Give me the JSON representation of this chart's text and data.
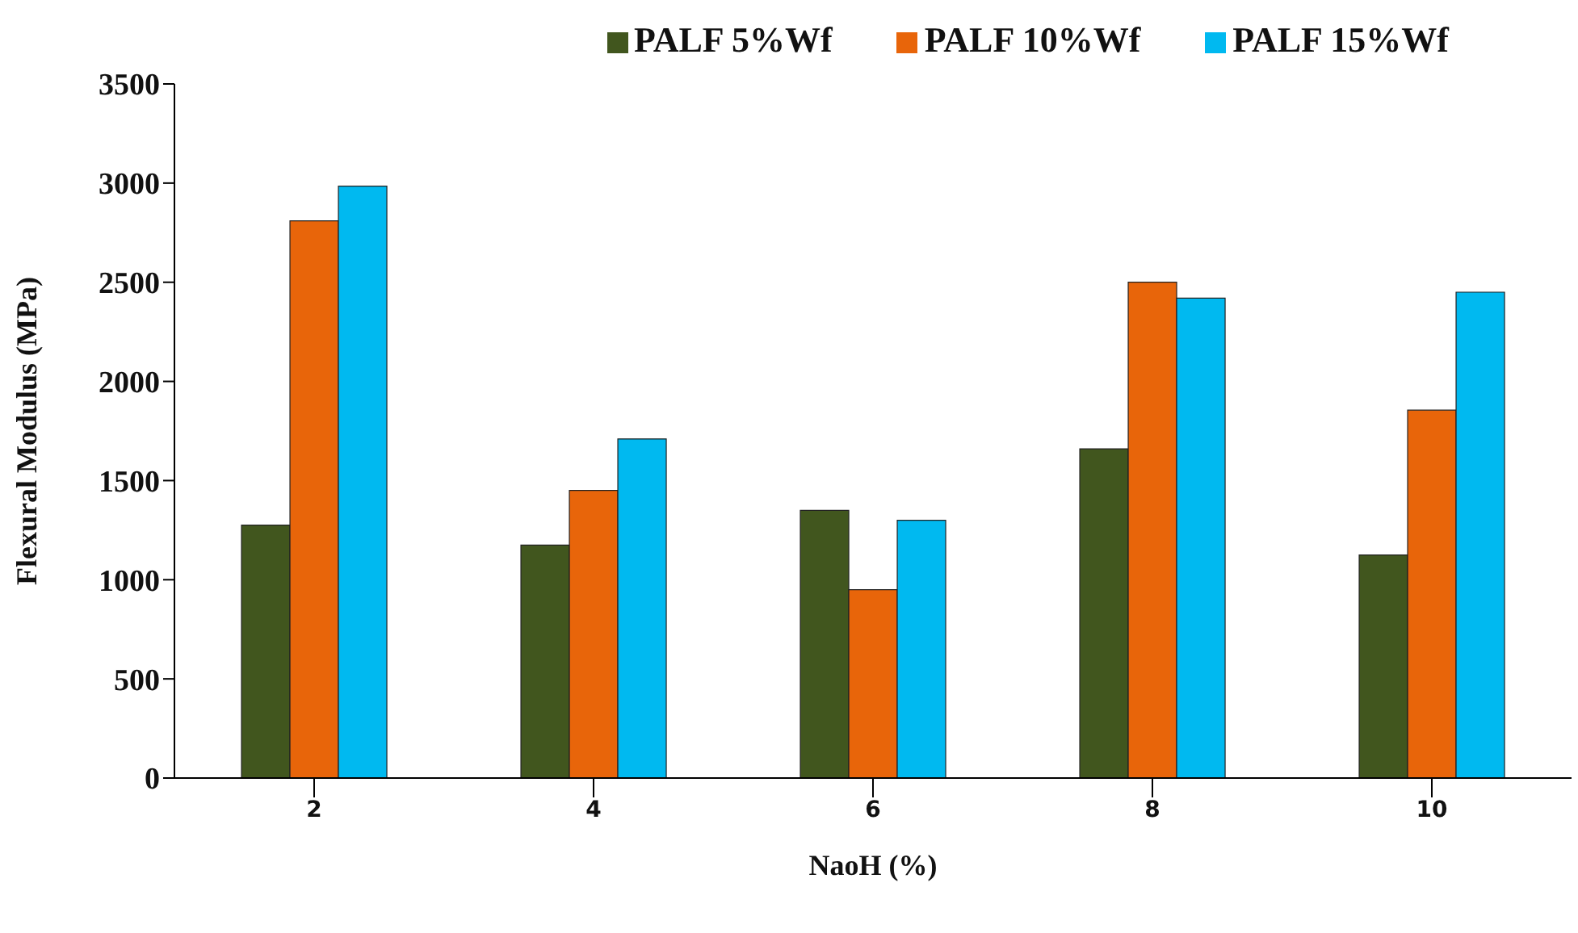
{
  "chart_data": {
    "type": "bar",
    "xlabel": "NaoH  (%)",
    "ylabel": "Flexural  Modulus   (MPa)",
    "categories": [
      "2",
      "4",
      "6",
      "8",
      "10"
    ],
    "series": [
      {
        "name": "PALF  5%Wf",
        "color": "#41561e",
        "values": [
          1275,
          1175,
          1350,
          1660,
          1125
        ]
      },
      {
        "name": "PALF 10%Wf",
        "color": "#e8650a",
        "values": [
          2810,
          1450,
          950,
          2500,
          1855
        ]
      },
      {
        "name": "PALF 15%Wf",
        "color": "#00b9f0",
        "values": [
          2985,
          1710,
          1300,
          2420,
          2450
        ]
      }
    ],
    "ylim": [
      0,
      3500
    ],
    "yticks": [
      0,
      500,
      1000,
      1500,
      2000,
      2500,
      3000,
      3500
    ],
    "grid": false,
    "legend": "top right"
  }
}
